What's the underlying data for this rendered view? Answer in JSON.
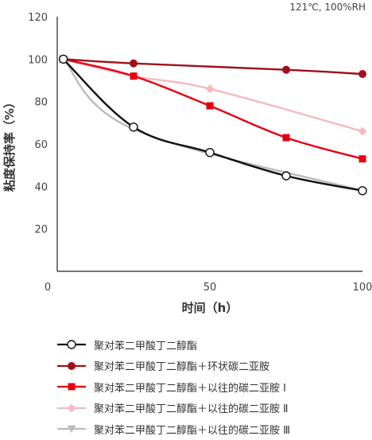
{
  "chart_data": {
    "type": "line",
    "condition_note": "121℃, 100%RH",
    "xlabel": "时间（h）",
    "ylabel": "粘度保持率（%）",
    "xlim": [
      0,
      100
    ],
    "ylim": [
      0,
      120
    ],
    "x_ticks": [
      0,
      50,
      100
    ],
    "y_ticks": [
      20,
      40,
      60,
      80,
      100,
      120
    ],
    "grid": false,
    "legend_placement": "bottom",
    "series": [
      {
        "name": "聚对苯二甲酸丁二醇酯",
        "color": "#111111",
        "marker": "circle-open",
        "x": [
          2,
          25,
          50,
          75,
          100
        ],
        "values": [
          100,
          68,
          56,
          45,
          38
        ]
      },
      {
        "name": "聚对苯二甲酸丁二醇酯＋环状碳二亚胺",
        "color": "#a0101c",
        "marker": "circle",
        "x": [
          2,
          25,
          75,
          100
        ],
        "values": [
          100,
          98,
          95,
          93
        ]
      },
      {
        "name": "聚对苯二甲酸丁二醇酯＋以往的碳二亚胺 Ⅰ",
        "color": "#e60012",
        "marker": "square",
        "x": [
          2,
          25,
          50,
          75,
          100
        ],
        "values": [
          100,
          92,
          78,
          63,
          53
        ]
      },
      {
        "name": "聚对苯二甲酸丁二醇酯＋以往的碳二亚胺 Ⅱ",
        "color": "#f6b9bd",
        "marker": "diamond",
        "x": [
          2,
          25,
          50,
          100
        ],
        "values": [
          100,
          92,
          86,
          66
        ]
      },
      {
        "name": "聚对苯二甲酸丁二醇酯＋以往的碳二亚胺 Ⅲ",
        "color": "#bbbbbb",
        "marker": "triangle-down",
        "x": [
          2,
          25,
          100
        ],
        "values": [
          100,
          67,
          38
        ]
      }
    ]
  }
}
